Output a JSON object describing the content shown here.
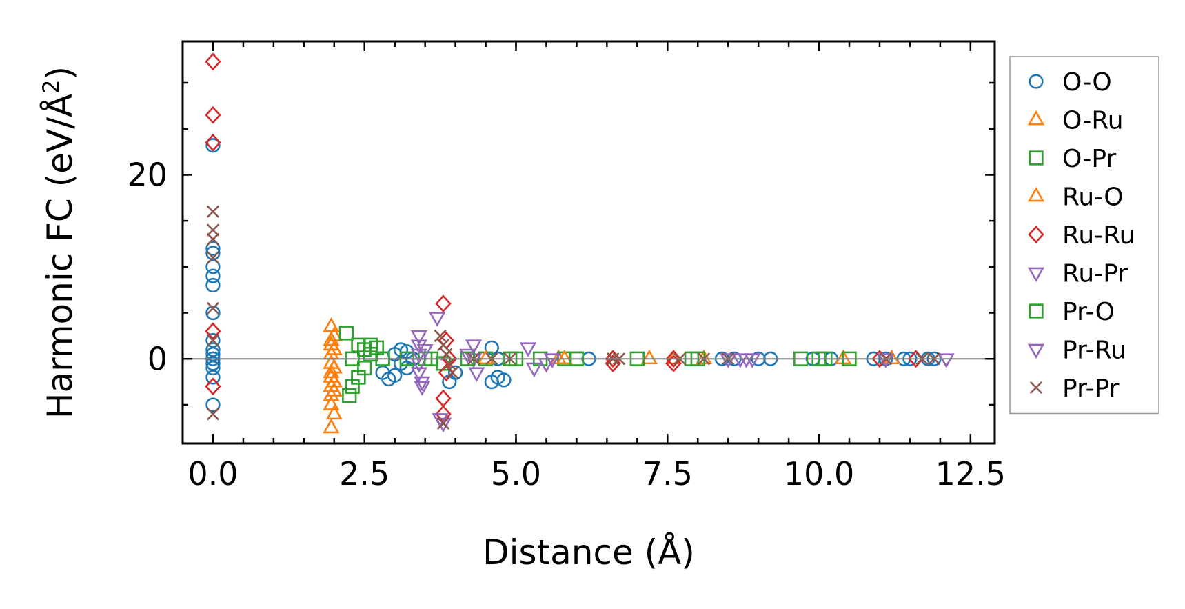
{
  "chart_data": {
    "type": "scatter",
    "xlabel": "Distance (Å)",
    "ylabel_main": "Harmonic FC (eV/Å",
    "ylabel_sup": "2",
    "ylabel_close": ")",
    "xlim": [
      -0.5,
      12.9
    ],
    "ylim": [
      -9.2,
      34.5
    ],
    "x_ticks": [
      0.0,
      2.5,
      5.0,
      7.5,
      10.0,
      12.5
    ],
    "x_tick_labels": [
      "0.0",
      "2.5",
      "5.0",
      "7.5",
      "10.0",
      "12.5"
    ],
    "y_ticks": [
      0,
      20
    ],
    "y_tick_labels": [
      "0",
      "20"
    ],
    "x_minor_step": 0.5,
    "y_minor_step": 5,
    "zero_line": true,
    "grid": false,
    "legend_position": "right-outside",
    "series": [
      {
        "name": "O-O",
        "marker": "circle",
        "color": "#1f77b4",
        "points": [
          [
            0,
            23.2
          ],
          [
            0,
            12
          ],
          [
            0,
            11.5
          ],
          [
            0,
            10
          ],
          [
            0,
            9
          ],
          [
            0,
            8
          ],
          [
            0,
            5
          ],
          [
            0,
            2
          ],
          [
            0,
            1
          ],
          [
            0,
            0.5
          ],
          [
            0,
            0
          ],
          [
            0,
            -0.5
          ],
          [
            0,
            -1
          ],
          [
            0,
            -2
          ],
          [
            0,
            -5
          ],
          [
            2.8,
            -1.5
          ],
          [
            2.9,
            -2.2
          ],
          [
            3.0,
            -1.8
          ],
          [
            3.0,
            0.5
          ],
          [
            3.1,
            -0.5
          ],
          [
            3.1,
            1
          ],
          [
            3.2,
            -1
          ],
          [
            3.2,
            0.8
          ],
          [
            3.3,
            0
          ],
          [
            3.9,
            -2.5
          ],
          [
            4.0,
            -1.5
          ],
          [
            4.6,
            1.2
          ],
          [
            4.6,
            -2.5
          ],
          [
            4.7,
            -2
          ],
          [
            4.8,
            -2.3
          ],
          [
            4.7,
            0
          ],
          [
            6.2,
            0
          ],
          [
            8.4,
            0
          ],
          [
            8.6,
            0
          ],
          [
            9.0,
            0
          ],
          [
            9.2,
            0
          ],
          [
            9.9,
            0
          ],
          [
            10.2,
            0
          ],
          [
            10.9,
            0
          ],
          [
            11.1,
            0
          ],
          [
            11.4,
            0
          ],
          [
            11.5,
            0
          ],
          [
            11.8,
            0
          ],
          [
            11.9,
            0
          ]
        ]
      },
      {
        "name": "O-Ru",
        "marker": "triangle-up",
        "color": "#ff7f0e",
        "points": [
          [
            1.95,
            3.5
          ],
          [
            1.95,
            2
          ],
          [
            1.95,
            1.5
          ],
          [
            1.95,
            0.5
          ],
          [
            1.95,
            -0.5
          ],
          [
            1.95,
            -1.5
          ],
          [
            1.95,
            -2
          ],
          [
            1.95,
            -3
          ],
          [
            1.95,
            -4
          ],
          [
            1.95,
            -5
          ],
          [
            1.95,
            -7.5
          ],
          [
            2.0,
            2.5
          ],
          [
            2.0,
            -2.5
          ],
          [
            2.0,
            -6
          ],
          [
            5.7,
            0
          ],
          [
            7.2,
            0
          ],
          [
            7.6,
            0
          ],
          [
            8.1,
            0
          ],
          [
            10.4,
            0
          ],
          [
            11.2,
            0
          ]
        ]
      },
      {
        "name": "O-Pr",
        "marker": "square",
        "color": "#2ca02c",
        "points": [
          [
            2.2,
            2.8
          ],
          [
            2.25,
            -4
          ],
          [
            2.3,
            0
          ],
          [
            2.3,
            -3
          ],
          [
            2.4,
            1.5
          ],
          [
            2.4,
            -2
          ],
          [
            2.5,
            1
          ],
          [
            2.5,
            -1
          ],
          [
            2.6,
            0.5
          ],
          [
            2.7,
            1.2
          ],
          [
            2.8,
            0
          ],
          [
            3.2,
            0
          ],
          [
            3.5,
            0
          ],
          [
            3.8,
            -0.5
          ],
          [
            4.2,
            0
          ],
          [
            4.5,
            0
          ],
          [
            5.0,
            0
          ],
          [
            5.4,
            0
          ],
          [
            5.8,
            0
          ],
          [
            6.0,
            0
          ],
          [
            7.0,
            0
          ],
          [
            7.9,
            0
          ],
          [
            8.0,
            0
          ],
          [
            9.7,
            0
          ],
          [
            10.0,
            0
          ],
          [
            10.5,
            0
          ]
        ]
      },
      {
        "name": "Ru-O",
        "marker": "triangle-up",
        "color": "#ff7f0e",
        "points": [
          [
            2.0,
            1
          ],
          [
            2.0,
            -1
          ],
          [
            2.0,
            -3.5
          ],
          [
            4.5,
            0
          ],
          [
            5.8,
            0
          ]
        ]
      },
      {
        "name": "Ru-Ru",
        "marker": "diamond",
        "color": "#d62728",
        "points": [
          [
            0,
            32.3
          ],
          [
            0,
            26.5
          ],
          [
            0,
            23.5
          ],
          [
            0,
            3
          ],
          [
            0,
            -3
          ],
          [
            3.8,
            6
          ],
          [
            3.8,
            -4.3
          ],
          [
            3.8,
            -6
          ],
          [
            3.85,
            2
          ],
          [
            3.85,
            -1.5
          ],
          [
            3.9,
            0
          ],
          [
            6.6,
            0
          ],
          [
            6.6,
            -0.5
          ],
          [
            7.6,
            0
          ],
          [
            7.6,
            -0.5
          ],
          [
            11.0,
            0
          ],
          [
            11.6,
            0
          ]
        ]
      },
      {
        "name": "Ru-Pr",
        "marker": "triangle-down",
        "color": "#9467bd",
        "points": [
          [
            3.4,
            2.5
          ],
          [
            3.4,
            1.5
          ],
          [
            3.4,
            0.5
          ],
          [
            3.4,
            -0.5
          ],
          [
            3.4,
            -1.5
          ],
          [
            3.45,
            -2.5
          ],
          [
            3.45,
            -3
          ],
          [
            3.7,
            4.5
          ],
          [
            3.75,
            -6.5
          ],
          [
            3.8,
            -7
          ],
          [
            4.3,
            1.5
          ],
          [
            4.3,
            0
          ],
          [
            4.35,
            -1.5
          ],
          [
            5.2,
            1.2
          ],
          [
            5.3,
            -1
          ],
          [
            5.5,
            -0.5
          ],
          [
            5.6,
            0
          ],
          [
            8.5,
            0
          ],
          [
            8.8,
            0
          ],
          [
            8.9,
            0
          ],
          [
            12.1,
            0
          ]
        ]
      },
      {
        "name": "Pr-O",
        "marker": "square",
        "color": "#2ca02c",
        "points": [
          [
            2.4,
            -2
          ],
          [
            2.6,
            1.5
          ],
          [
            2.8,
            0
          ],
          [
            3.6,
            0
          ],
          [
            4.2,
            0
          ],
          [
            4.9,
            0
          ],
          [
            6.0,
            0
          ],
          [
            10.1,
            0
          ]
        ]
      },
      {
        "name": "Pr-Ru",
        "marker": "triangle-down",
        "color": "#9467bd",
        "points": [
          [
            3.5,
            1
          ],
          [
            4.2,
            0.5
          ],
          [
            5.6,
            0
          ],
          [
            8.7,
            0
          ],
          [
            11.1,
            0
          ]
        ]
      },
      {
        "name": "Pr-Pr",
        "marker": "x",
        "color": "#8c564b",
        "points": [
          [
            0,
            16
          ],
          [
            0,
            14
          ],
          [
            0,
            13
          ],
          [
            0,
            11
          ],
          [
            0,
            5.5
          ],
          [
            0,
            2
          ],
          [
            0,
            -6
          ],
          [
            3.75,
            2.5
          ],
          [
            3.8,
            1.5
          ],
          [
            3.85,
            0.5
          ],
          [
            3.9,
            -0.5
          ],
          [
            3.95,
            -1.5
          ],
          [
            3.8,
            -7
          ],
          [
            4.3,
            0
          ],
          [
            4.6,
            0
          ],
          [
            4.9,
            0
          ],
          [
            6.6,
            0
          ],
          [
            6.7,
            0
          ],
          [
            7.7,
            0
          ],
          [
            8.1,
            0
          ],
          [
            8.5,
            0
          ],
          [
            11.1,
            0
          ],
          [
            11.7,
            0
          ],
          [
            11.9,
            0
          ]
        ]
      }
    ]
  }
}
